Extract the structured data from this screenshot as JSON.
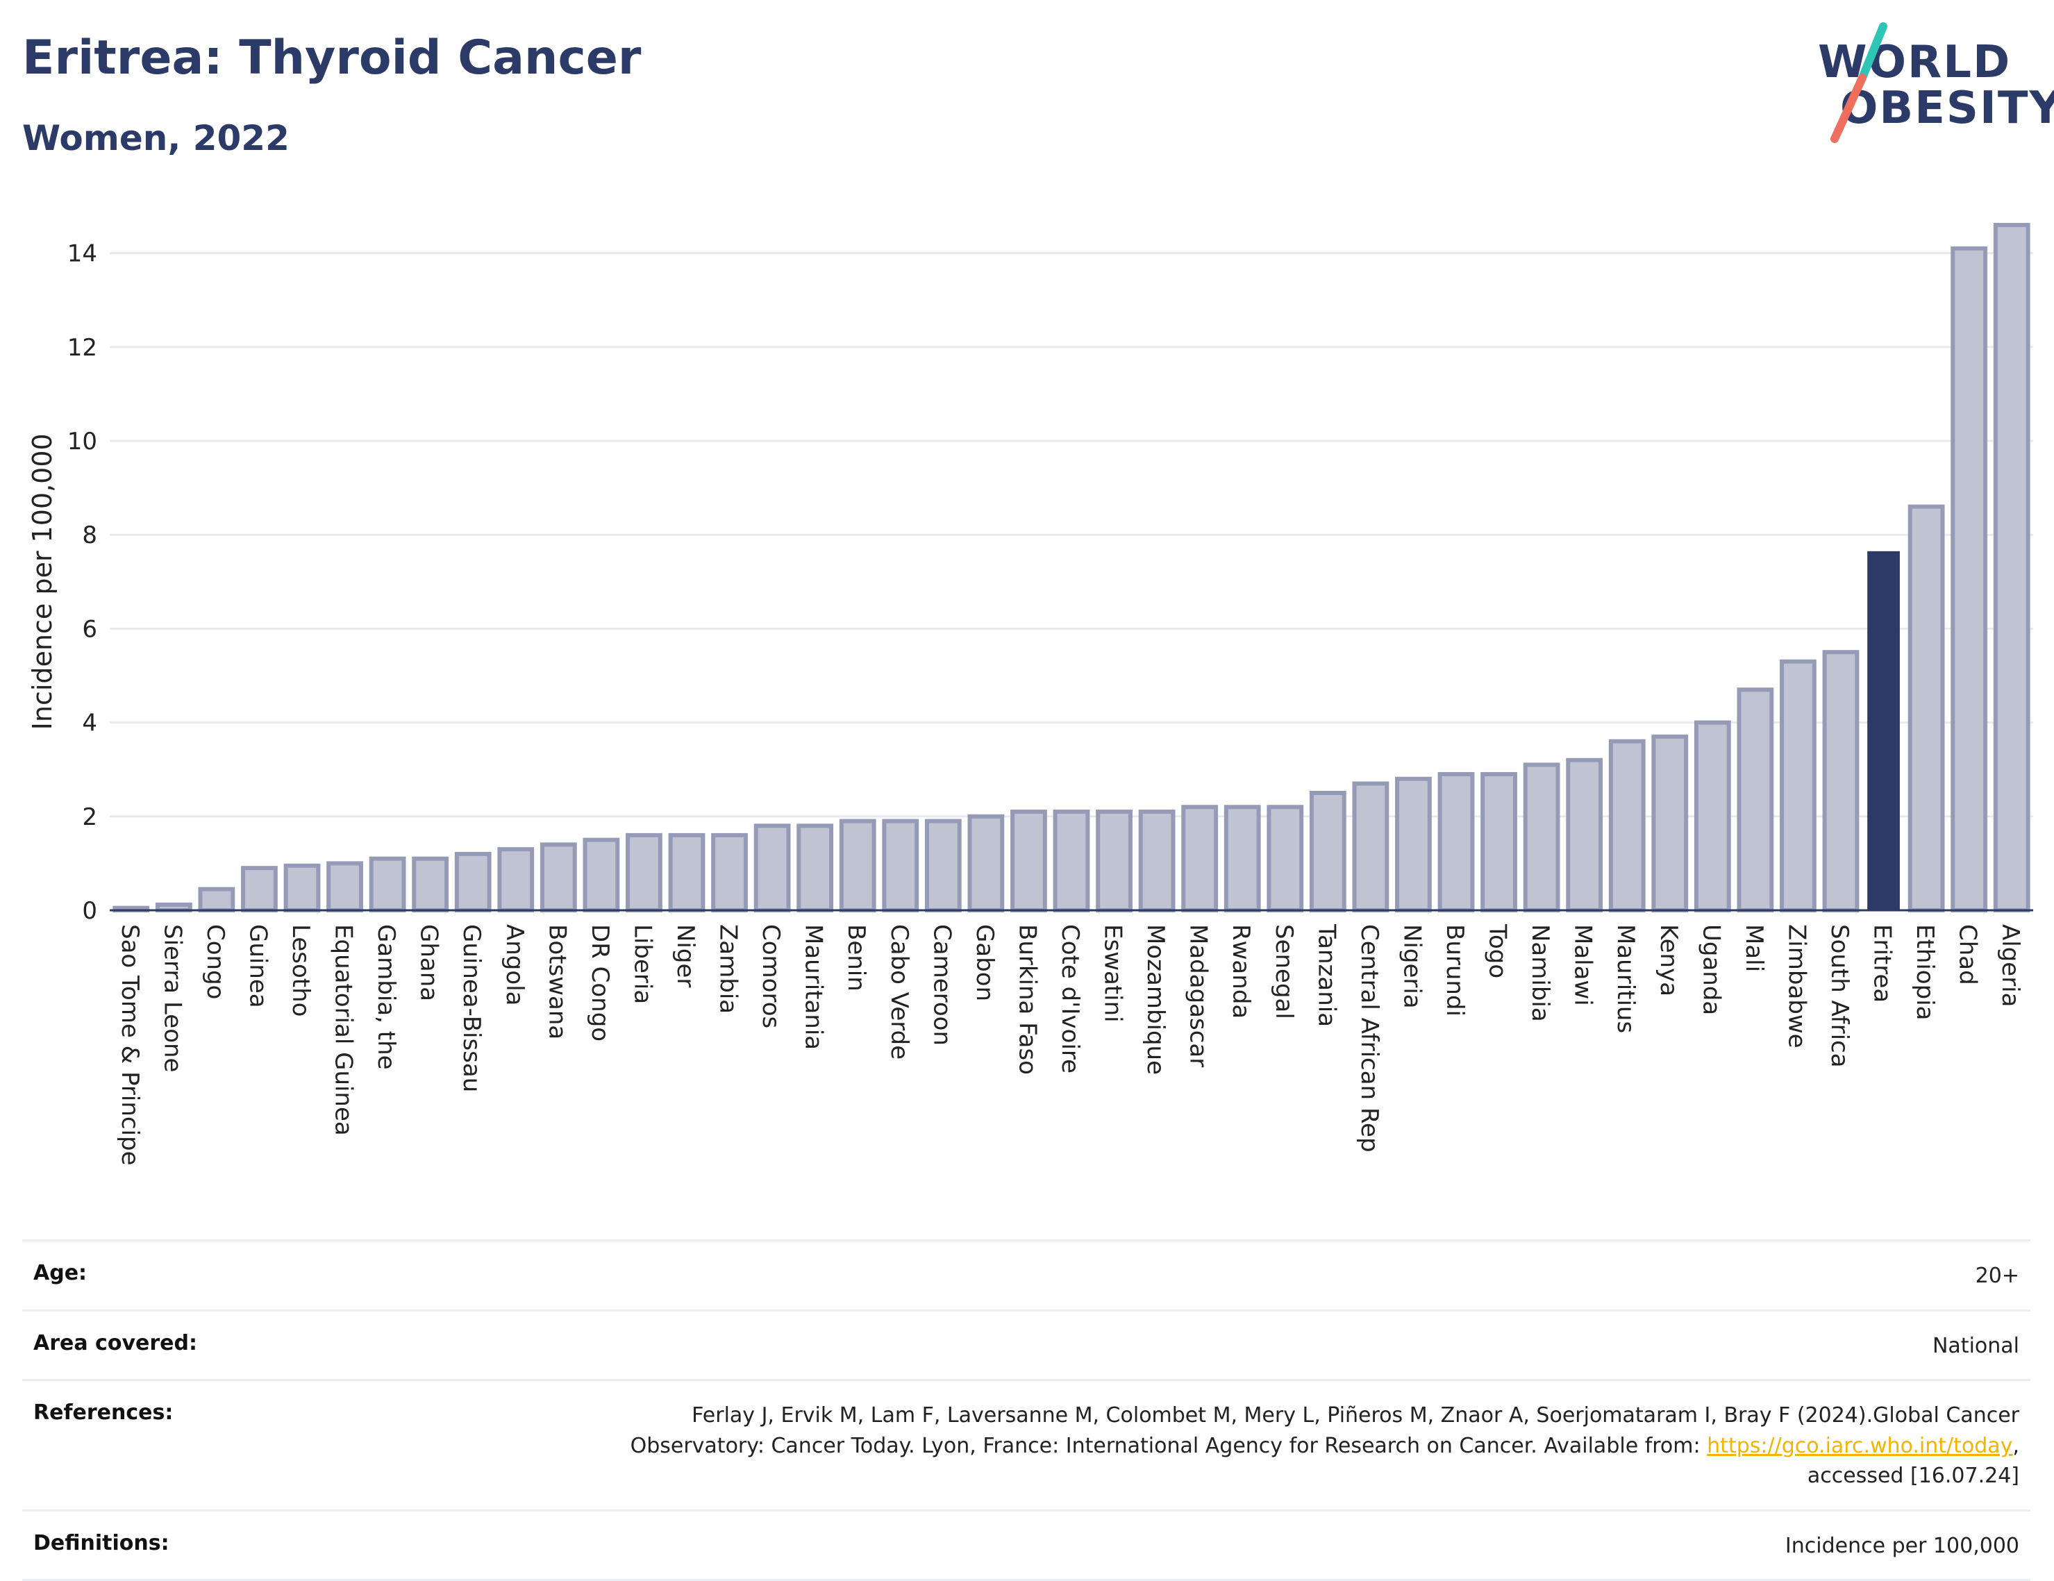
{
  "header": {
    "title": "Eritrea: Thyroid Cancer",
    "subtitle": "Women, 2022"
  },
  "logo": {
    "line1": "WORLD",
    "line2": "OBESITY",
    "colors": {
      "text": "#2b3a67",
      "slash_top": "#2ec4b6",
      "slash_bottom": "#ef6f5e"
    }
  },
  "colors": {
    "bar": "#bfc3d2",
    "bar_stroke": "#959bb6",
    "highlight": "#2b3a67",
    "grid": "#e9eaf0",
    "axis": "#2b3a67"
  },
  "chart_data": {
    "type": "bar",
    "title": "Eritrea: Thyroid Cancer",
    "subtitle": "Women, 2022",
    "xlabel": "",
    "ylabel": "Incidence per 100,000",
    "ylim": [
      0,
      15
    ],
    "yticks": [
      0,
      2,
      4,
      6,
      8,
      10,
      12,
      14
    ],
    "grid": true,
    "highlight": "Eritrea",
    "categories": [
      "Sao Tome & Principe",
      "Sierra Leone",
      "Congo",
      "Guinea",
      "Lesotho",
      "Equatorial Guinea",
      "Gambia, the",
      "Ghana",
      "Guinea-Bissau",
      "Angola",
      "Botswana",
      "DR Congo",
      "Liberia",
      "Niger",
      "Zambia",
      "Comoros",
      "Mauritania",
      "Benin",
      "Cabo Verde",
      "Cameroon",
      "Gabon",
      "Burkina Faso",
      "Cote d'Ivoire",
      "Eswatini",
      "Mozambique",
      "Madagascar",
      "Rwanda",
      "Senegal",
      "Tanzania",
      "Central African Rep",
      "Nigeria",
      "Burundi",
      "Togo",
      "Namibia",
      "Malawi",
      "Mauritius",
      "Kenya",
      "Uganda",
      "Mali",
      "Zimbabwe",
      "South Africa",
      "Eritrea",
      "Ethiopia",
      "Chad",
      "Algeria"
    ],
    "values": [
      0.05,
      0.12,
      0.45,
      0.9,
      0.95,
      1.0,
      1.1,
      1.1,
      1.2,
      1.3,
      1.4,
      1.5,
      1.6,
      1.6,
      1.6,
      1.8,
      1.8,
      1.9,
      1.9,
      1.9,
      2.0,
      2.1,
      2.1,
      2.1,
      2.1,
      2.2,
      2.2,
      2.2,
      2.5,
      2.7,
      2.8,
      2.9,
      2.9,
      3.1,
      3.2,
      3.6,
      3.7,
      4.0,
      4.7,
      5.3,
      5.5,
      7.65,
      8.6,
      14.1,
      14.6
    ]
  },
  "info": {
    "age_label": "Age:",
    "age_value": "20+",
    "area_label": "Area covered:",
    "area_value": "National",
    "references_label": "References:",
    "references_text_1": "Ferlay J, Ervik M, Lam F, Laversanne M, Colombet M, Mery L, Piñeros M, Znaor A, Soerjomataram I, Bray F (2024).Global Cancer",
    "references_text_2": "Observatory: Cancer Today. Lyon, France: International Agency for Research on Cancer. Available from:",
    "references_link": "https://gco.iarc.who.int/today",
    "references_text_3": "accessed [16.07.24]",
    "definitions_label": "Definitions:",
    "definitions_value": "Incidence per 100,000"
  }
}
